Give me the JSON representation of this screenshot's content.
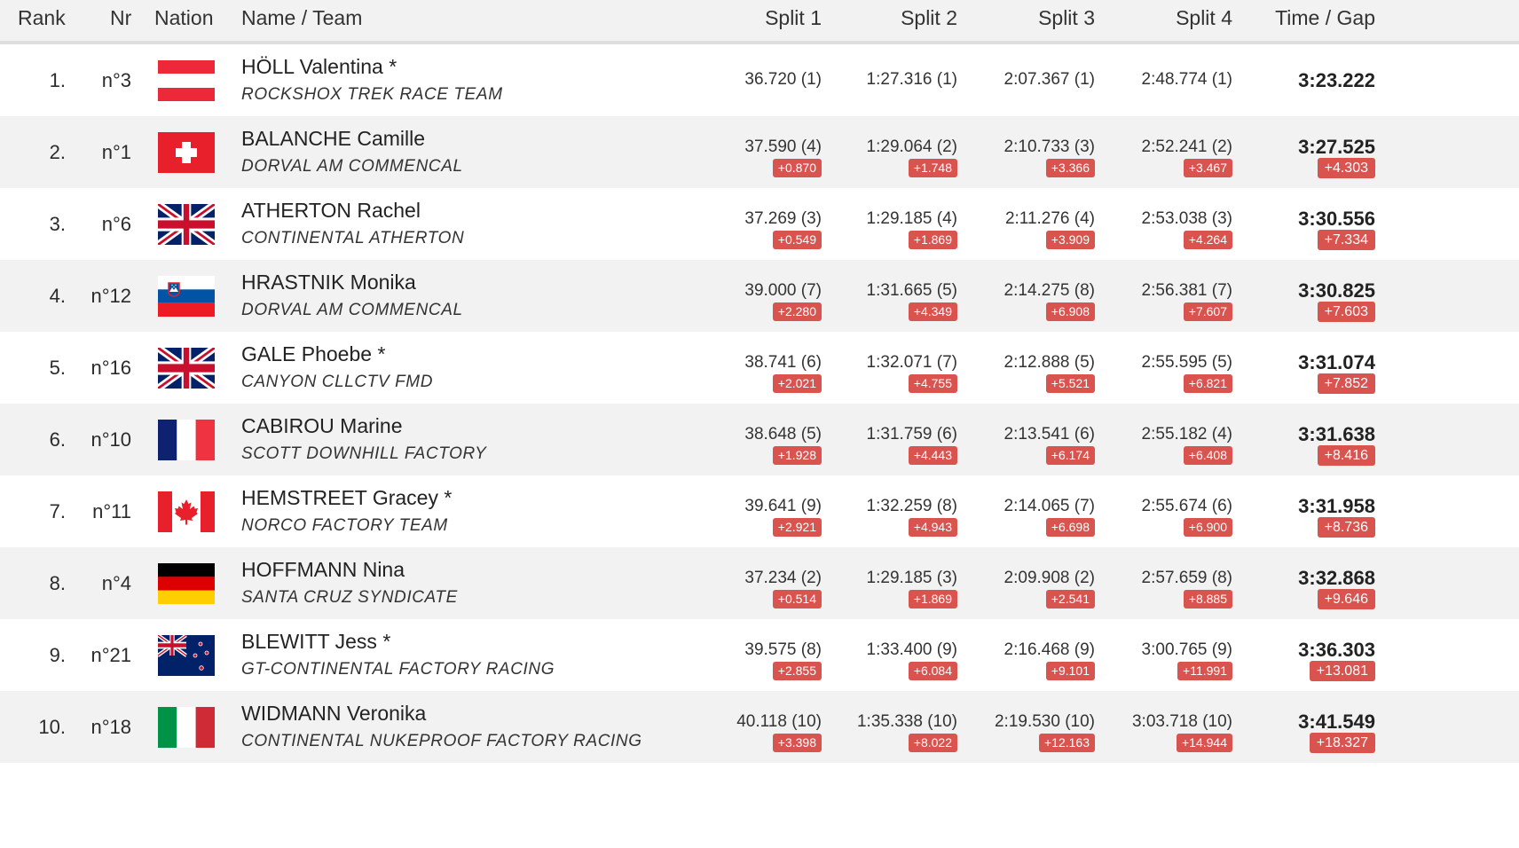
{
  "colors": {
    "badge": "#d9534f",
    "alt_row": "#f2f2f2",
    "header_bg": "#f2f2f2"
  },
  "header": {
    "rank": "Rank",
    "nr": "Nr",
    "nation": "Nation",
    "name_team": "Name / Team",
    "split1": "Split 1",
    "split2": "Split 2",
    "split3": "Split 3",
    "split4": "Split 4",
    "time_gap": "Time / Gap"
  },
  "rows": [
    {
      "rank": "1.",
      "nr": "n°3",
      "flag": "austria-flag",
      "name": "HÖLL Valentina *",
      "team": "ROCKSHOX TREK RACE TEAM",
      "splits": [
        {
          "value": "36.720 (1)",
          "gap": ""
        },
        {
          "value": "1:27.316 (1)",
          "gap": ""
        },
        {
          "value": "2:07.367 (1)",
          "gap": ""
        },
        {
          "value": "2:48.774 (1)",
          "gap": ""
        }
      ],
      "time": "3:23.222",
      "gap": ""
    },
    {
      "rank": "2.",
      "nr": "n°1",
      "flag": "switzerland-flag",
      "name": "BALANCHE Camille",
      "team": "DORVAL AM COMMENCAL",
      "splits": [
        {
          "value": "37.590 (4)",
          "gap": "+0.870"
        },
        {
          "value": "1:29.064 (2)",
          "gap": "+1.748"
        },
        {
          "value": "2:10.733 (3)",
          "gap": "+3.366"
        },
        {
          "value": "2:52.241 (2)",
          "gap": "+3.467"
        }
      ],
      "time": "3:27.525",
      "gap": "+4.303"
    },
    {
      "rank": "3.",
      "nr": "n°6",
      "flag": "uk-flag",
      "name": "ATHERTON Rachel",
      "team": "CONTINENTAL ATHERTON",
      "splits": [
        {
          "value": "37.269 (3)",
          "gap": "+0.549"
        },
        {
          "value": "1:29.185 (4)",
          "gap": "+1.869"
        },
        {
          "value": "2:11.276 (4)",
          "gap": "+3.909"
        },
        {
          "value": "2:53.038 (3)",
          "gap": "+4.264"
        }
      ],
      "time": "3:30.556",
      "gap": "+7.334"
    },
    {
      "rank": "4.",
      "nr": "n°12",
      "flag": "slovenia-flag",
      "name": "HRASTNIK Monika",
      "team": "DORVAL AM COMMENCAL",
      "splits": [
        {
          "value": "39.000 (7)",
          "gap": "+2.280"
        },
        {
          "value": "1:31.665 (5)",
          "gap": "+4.349"
        },
        {
          "value": "2:14.275 (8)",
          "gap": "+6.908"
        },
        {
          "value": "2:56.381 (7)",
          "gap": "+7.607"
        }
      ],
      "time": "3:30.825",
      "gap": "+7.603"
    },
    {
      "rank": "5.",
      "nr": "n°16",
      "flag": "uk-flag",
      "name": "GALE Phoebe *",
      "team": "CANYON CLLCTV FMD",
      "splits": [
        {
          "value": "38.741 (6)",
          "gap": "+2.021"
        },
        {
          "value": "1:32.071 (7)",
          "gap": "+4.755"
        },
        {
          "value": "2:12.888 (5)",
          "gap": "+5.521"
        },
        {
          "value": "2:55.595 (5)",
          "gap": "+6.821"
        }
      ],
      "time": "3:31.074",
      "gap": "+7.852"
    },
    {
      "rank": "6.",
      "nr": "n°10",
      "flag": "france-flag",
      "name": "CABIROU Marine",
      "team": "SCOTT DOWNHILL FACTORY",
      "splits": [
        {
          "value": "38.648 (5)",
          "gap": "+1.928"
        },
        {
          "value": "1:31.759 (6)",
          "gap": "+4.443"
        },
        {
          "value": "2:13.541 (6)",
          "gap": "+6.174"
        },
        {
          "value": "2:55.182 (4)",
          "gap": "+6.408"
        }
      ],
      "time": "3:31.638",
      "gap": "+8.416"
    },
    {
      "rank": "7.",
      "nr": "n°11",
      "flag": "canada-flag",
      "name": "HEMSTREET Gracey *",
      "team": "NORCO FACTORY TEAM",
      "splits": [
        {
          "value": "39.641 (9)",
          "gap": "+2.921"
        },
        {
          "value": "1:32.259 (8)",
          "gap": "+4.943"
        },
        {
          "value": "2:14.065 (7)",
          "gap": "+6.698"
        },
        {
          "value": "2:55.674 (6)",
          "gap": "+6.900"
        }
      ],
      "time": "3:31.958",
      "gap": "+8.736"
    },
    {
      "rank": "8.",
      "nr": "n°4",
      "flag": "germany-flag",
      "name": "HOFFMANN Nina",
      "team": "SANTA CRUZ SYNDICATE",
      "splits": [
        {
          "value": "37.234 (2)",
          "gap": "+0.514"
        },
        {
          "value": "1:29.185 (3)",
          "gap": "+1.869"
        },
        {
          "value": "2:09.908 (2)",
          "gap": "+2.541"
        },
        {
          "value": "2:57.659 (8)",
          "gap": "+8.885"
        }
      ],
      "time": "3:32.868",
      "gap": "+9.646"
    },
    {
      "rank": "9.",
      "nr": "n°21",
      "flag": "new-zealand-flag",
      "name": "BLEWITT Jess *",
      "team": "GT-CONTINENTAL FACTORY RACING",
      "splits": [
        {
          "value": "39.575 (8)",
          "gap": "+2.855"
        },
        {
          "value": "1:33.400 (9)",
          "gap": "+6.084"
        },
        {
          "value": "2:16.468 (9)",
          "gap": "+9.101"
        },
        {
          "value": "3:00.765 (9)",
          "gap": "+11.991"
        }
      ],
      "time": "3:36.303",
      "gap": "+13.081"
    },
    {
      "rank": "10.",
      "nr": "n°18",
      "flag": "italy-flag",
      "name": "WIDMANN Veronika",
      "team": "CONTINENTAL NUKEPROOF FACTORY RACING",
      "splits": [
        {
          "value": "40.118 (10)",
          "gap": "+3.398"
        },
        {
          "value": "1:35.338 (10)",
          "gap": "+8.022"
        },
        {
          "value": "2:19.530 (10)",
          "gap": "+12.163"
        },
        {
          "value": "3:03.718 (10)",
          "gap": "+14.944"
        }
      ],
      "time": "3:41.549",
      "gap": "+18.327"
    }
  ]
}
